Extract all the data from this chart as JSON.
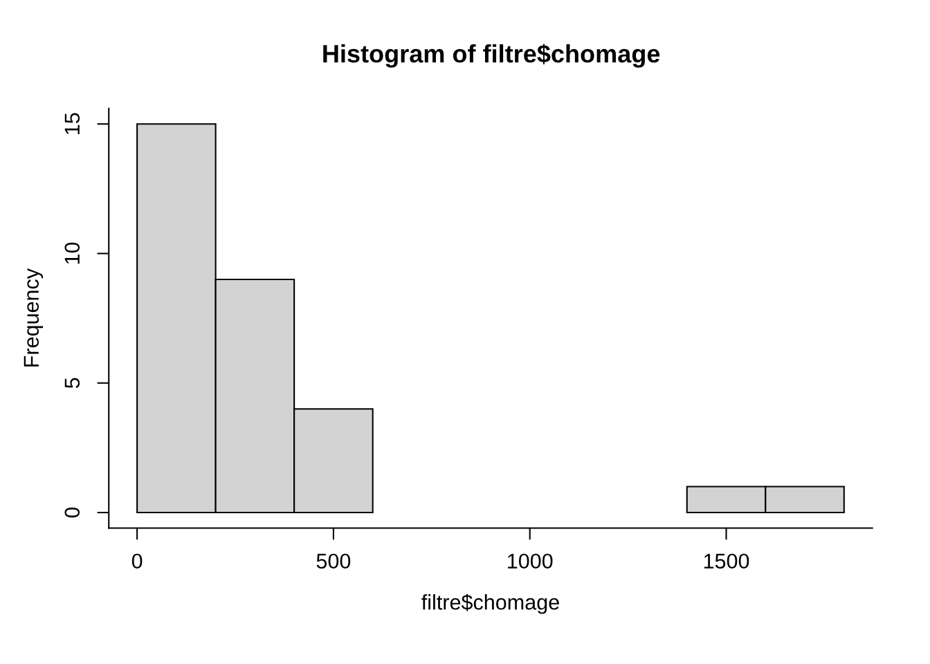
{
  "chart_data": {
    "type": "histogram",
    "title": "Histogram of filtre$chomage",
    "xlabel": "filtre$chomage",
    "ylabel": "Frequency",
    "bins": [
      0,
      200,
      400,
      600,
      800,
      1000,
      1200,
      1400,
      1600,
      1800
    ],
    "values": [
      15,
      9,
      4,
      0,
      0,
      0,
      0,
      1,
      1
    ],
    "color": "#d3d3d3",
    "xlim": [
      -72,
      1872
    ],
    "ylim": [
      -0.6,
      15.6
    ],
    "xticks": [
      0,
      500,
      1000,
      1500
    ],
    "yticks": [
      0,
      5,
      10,
      15
    ],
    "grid": false,
    "legend": false
  }
}
